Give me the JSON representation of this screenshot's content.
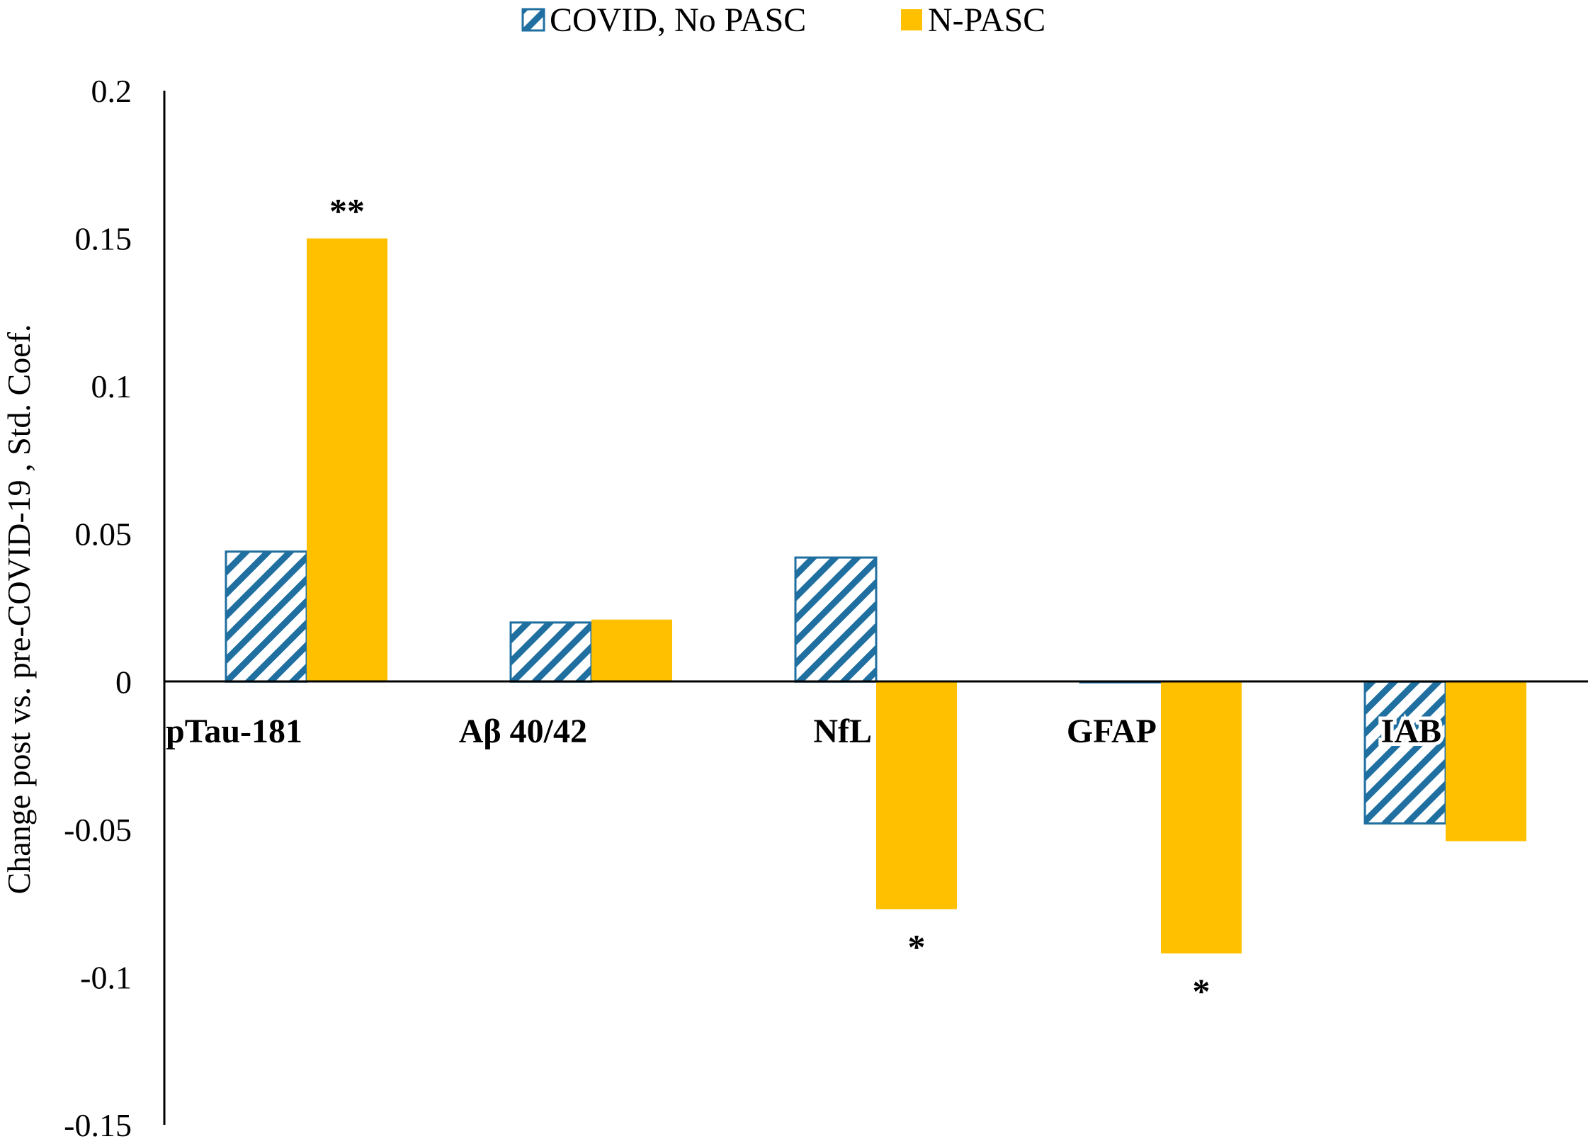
{
  "chart_data": {
    "type": "bar",
    "title": "",
    "xlabel": "",
    "ylabel": "Change post vs. pre-COVID-19 , Std. Coef.",
    "ylim": [
      -0.15,
      0.2
    ],
    "yticks": [
      0.2,
      0.15,
      0.1,
      0.05,
      0,
      -0.05,
      -0.1,
      -0.15
    ],
    "ytick_labels": [
      "0.2",
      "0.15",
      "0.1",
      "0.05",
      "0",
      "-0.05",
      "-0.1",
      "-0.15"
    ],
    "categories": [
      "pTau-181",
      "Aβ 40/42",
      "NfL",
      "GFAP",
      "IAB"
    ],
    "series": [
      {
        "name": "COVID, No PASC",
        "color": "#1f6fa0",
        "pattern": "diagonal-hatch",
        "values": [
          0.044,
          0.02,
          0.042,
          0.0,
          -0.048
        ]
      },
      {
        "name": "N-PASC",
        "color": "#ffc000",
        "pattern": "solid",
        "values": [
          0.15,
          0.021,
          -0.077,
          -0.092,
          -0.054
        ]
      }
    ],
    "annotations": [
      {
        "category": "pTau-181",
        "series": "N-PASC",
        "text": "**"
      },
      {
        "category": "NfL",
        "series": "N-PASC",
        "text": "*"
      },
      {
        "category": "GFAP",
        "series": "N-PASC",
        "text": "*"
      }
    ],
    "grid": false,
    "legend_position": "top-center"
  }
}
